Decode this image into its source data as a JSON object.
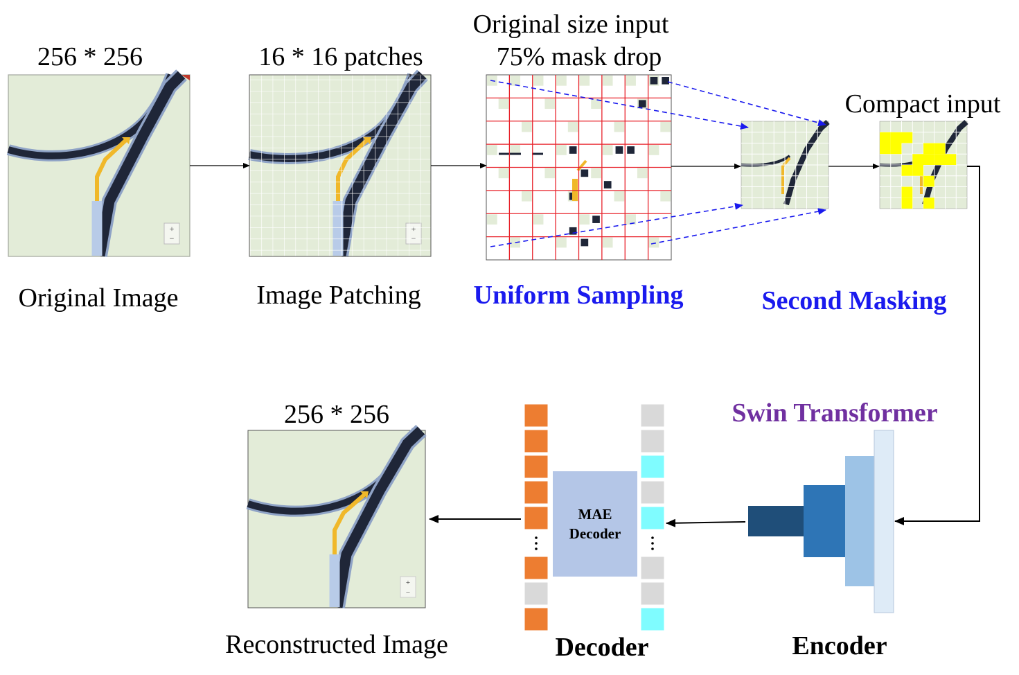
{
  "top_row": {
    "original": {
      "size_label": "256 * 256",
      "caption": "Original Image"
    },
    "patching": {
      "size_label": "16 * 16 patches",
      "caption": "Image Patching"
    },
    "uniform": {
      "header_line1": "Original size input",
      "header_line2": "75% mask drop",
      "caption": "Uniform Sampling"
    },
    "second": {
      "header": "Compact input",
      "caption": "Second Masking"
    }
  },
  "bottom_row": {
    "reconstructed": {
      "size_label": "256 * 256",
      "caption": "Reconstructed Image"
    },
    "decoder": {
      "block_line1": "MAE",
      "block_line2": "Decoder",
      "caption": "Decoder"
    },
    "encoder": {
      "title": "Swin Transformer",
      "caption": "Encoder"
    }
  },
  "token_columns": {
    "left": [
      "orange",
      "orange",
      "orange",
      "orange",
      "orange",
      "dots",
      "orange",
      "gray",
      "orange"
    ],
    "right": [
      "gray",
      "gray",
      "cyan",
      "gray",
      "cyan",
      "dots",
      "gray",
      "gray",
      "cyan"
    ]
  },
  "colors": {
    "map_bg": "#e3ecd8",
    "road": "#1f2638",
    "road_shadow": "#8fa3c6",
    "path_blue": "#b8cbe8",
    "arrow_yellow": "#f0b82a",
    "patch_grid": "#ffffff",
    "red_grid": "#e8222a",
    "blue_dashed": "#1a1aee",
    "mask_yellow": "#ffff00",
    "token_orange": "#ed7d31",
    "token_gray": "#d9d9d9",
    "token_cyan": "#7ffcff",
    "mae_block": "#b4c6e7",
    "enc1": "#1f4e79",
    "enc2": "#2e75b6",
    "enc3": "#9dc3e6",
    "enc4": "#deebf7"
  }
}
